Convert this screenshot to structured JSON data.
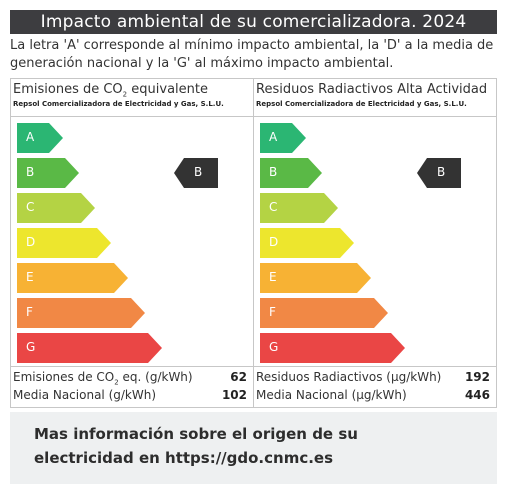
{
  "header": {
    "title": "Impacto ambiental de su comercializadora. 2024",
    "description": "La letra 'A' corresponde al mínimo impacto ambiental, la 'D' a la media de generación nacional y la 'G' al máximo impacto ambiental."
  },
  "scale_letters": [
    "A",
    "B",
    "C",
    "D",
    "E",
    "F",
    "G"
  ],
  "colors": {
    "A": "#2bb673",
    "B": "#5ab946",
    "C": "#b4d344",
    "D": "#ede62d",
    "E": "#f7b234",
    "F": "#f18845",
    "G": "#ea4645",
    "marker": "#333333"
  },
  "panels": {
    "co2": {
      "title_prefix": "Emisiones de CO",
      "title_sub": "2",
      "title_suffix": " equivalente",
      "company": "Repsol Comercializadora de Electricidad y Gas, S.L.U.",
      "rating": "B",
      "row1_prefix": "Emisiones de CO",
      "row1_sub": "2",
      "row1_suffix": " eq. (g/kWh)",
      "row1_value": "62",
      "row2_label": "Media Nacional (g/kWh)",
      "row2_value": "102"
    },
    "radioactive": {
      "title": "Residuos Radiactivos Alta Actividad",
      "company": "Repsol Comercializadora de Electricidad y Gas, S.L.U.",
      "rating": "B",
      "row1_label": "Residuos Radiactivos (µg/kWh)",
      "row1_value": "192",
      "row2_label": "Media Nacional (µg/kWh)",
      "row2_value": "446"
    }
  },
  "footer": {
    "info_line1": "Mas información sobre el origen de su",
    "info_line2": "electricidad en https://gdo.cnmc.es"
  }
}
